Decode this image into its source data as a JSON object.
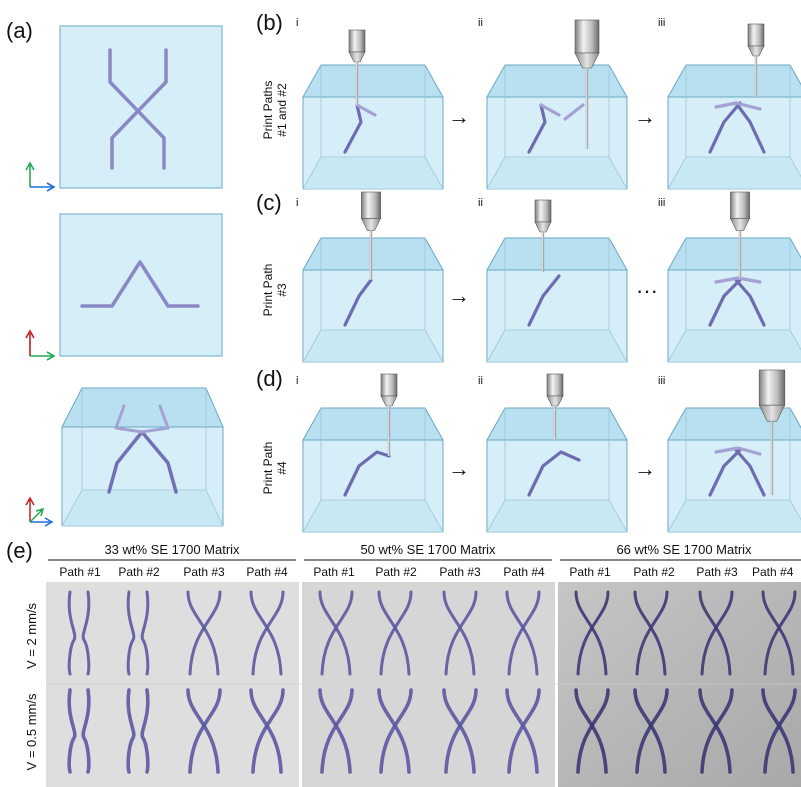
{
  "figure": {
    "panel_labels": {
      "a": "(a)",
      "b": "(b)",
      "c": "(c)",
      "d": "(d)",
      "e": "(e)"
    },
    "roman": [
      "i",
      "ii",
      "iii"
    ],
    "row_labels": {
      "b": [
        "Print Paths",
        "#1 and #2"
      ],
      "c": [
        "Print Path",
        "#3"
      ],
      "d": [
        "Print Path",
        "#4"
      ]
    },
    "arrows": {
      "right_arrow": "→",
      "ellipsis": "···"
    }
  },
  "photos": {
    "groups": [
      {
        "title": "33 wt% SE 1700 Matrix",
        "paths": [
          "Path #1",
          "Path #2",
          "Path #3",
          "Path #4"
        ]
      },
      {
        "title": "50 wt% SE 1700 Matrix",
        "paths": [
          "Path #1",
          "Path #2",
          "Path #3",
          "Path #4"
        ]
      },
      {
        "title": "66 wt% SE 1700 Matrix",
        "paths": [
          "Path #1",
          "Path #2",
          "Path #3",
          "Path #4"
        ]
      }
    ],
    "row_labels": [
      "V = 2 mm/s",
      "V = 0.5 mm/s"
    ]
  },
  "colors": {
    "tank_fill": "#d5eef8",
    "tank_top": "#b8e0f0",
    "tank_edge": "#6aa9c4",
    "filament": "#8a88c4",
    "filament_dark": "#3e3a80",
    "photo_bg_1": "#dddddd",
    "photo_bg_2": "#d8d8d8",
    "photo_bg_3": "#b8b8b8",
    "axis_green": "#22aa55",
    "axis_blue": "#1e6fe0",
    "axis_red": "#c02020"
  }
}
